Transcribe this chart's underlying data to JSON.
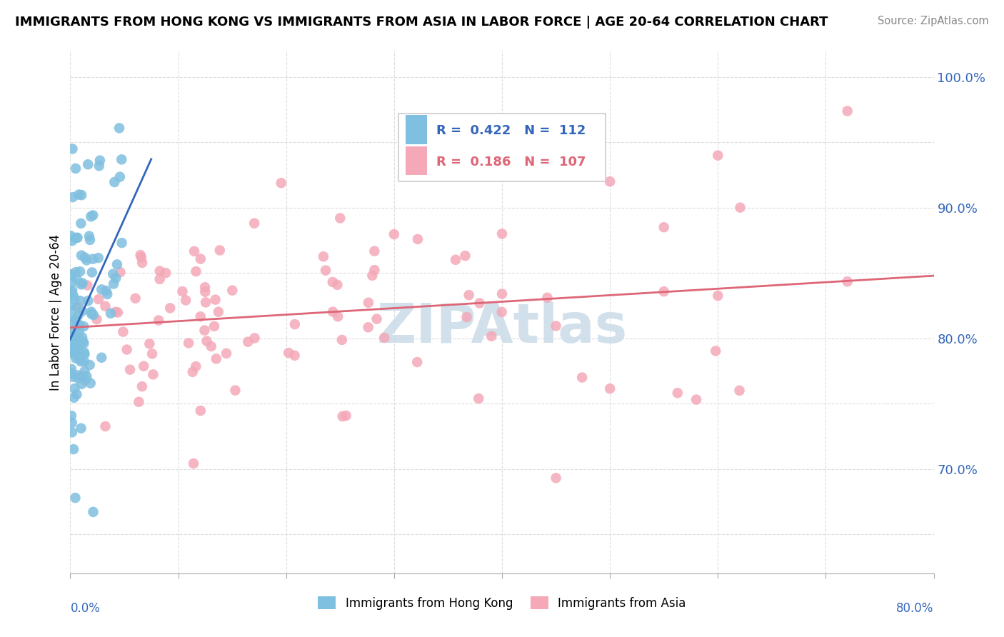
{
  "title": "IMMIGRANTS FROM HONG KONG VS IMMIGRANTS FROM ASIA IN LABOR FORCE | AGE 20-64 CORRELATION CHART",
  "source": "Source: ZipAtlas.com",
  "ylabel": "In Labor Force | Age 20-64",
  "xlim": [
    0.0,
    0.8
  ],
  "ylim": [
    0.62,
    1.02
  ],
  "y_ticks": [
    0.65,
    0.7,
    0.75,
    0.8,
    0.85,
    0.9,
    0.95,
    1.0
  ],
  "y_tick_labels": [
    "",
    "70.0%",
    "",
    "80.0%",
    "",
    "90.0%",
    "",
    "100.0%"
  ],
  "hk_color": "#7fbfdf",
  "asia_color": "#f4a8b8",
  "hk_line_color": "#3366bb",
  "asia_line_color": "#dd6677",
  "legend_box_color": "#ffffff",
  "legend_border_color": "#cccccc",
  "R_hk": 0.422,
  "N_hk": 112,
  "R_asia": 0.186,
  "N_asia": 107,
  "watermark_text": "ZIPAtlas",
  "watermark_color": "#ccdde8",
  "background_color": "#ffffff",
  "grid_color": "#dddddd",
  "title_color": "#000000",
  "source_color": "#888888",
  "axis_label_color": "#3366bb",
  "ylabel_color": "#000000"
}
